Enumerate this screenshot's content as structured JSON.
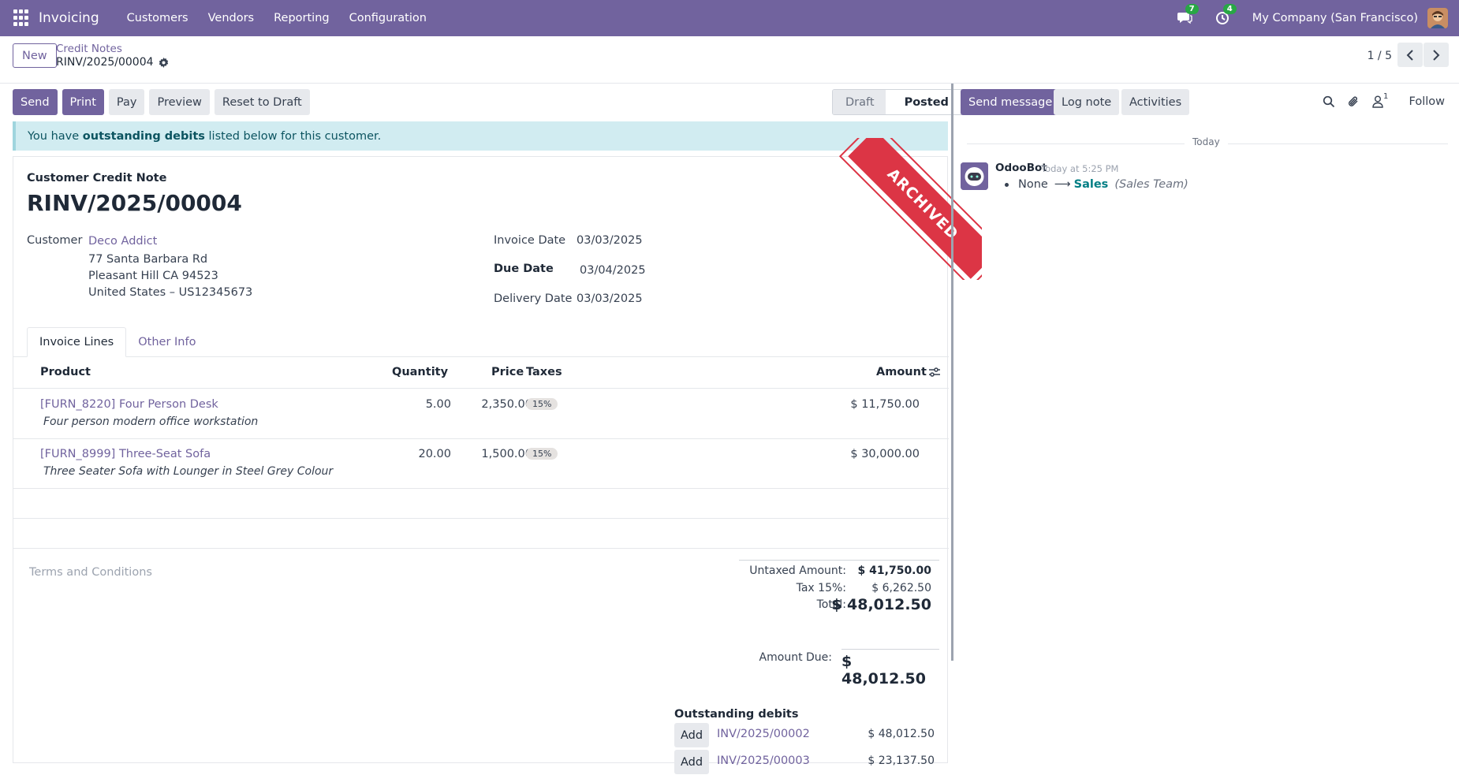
{
  "topbar": {
    "app_name": "Invoicing",
    "menu": [
      "Customers",
      "Vendors",
      "Reporting",
      "Configuration"
    ],
    "messages_badge": "7",
    "activities_badge": "4",
    "company": "My Company (San Francisco)"
  },
  "control": {
    "new_label": "New",
    "breadcrumb_parent": "Credit Notes",
    "breadcrumb_current": "RINV/2025/00004",
    "pager": "1 / 5"
  },
  "actions": {
    "send": "Send",
    "print": "Print",
    "pay": "Pay",
    "preview": "Preview",
    "reset": "Reset to Draft"
  },
  "status": {
    "draft": "Draft",
    "posted": "Posted"
  },
  "alert": {
    "prefix": "You have ",
    "bold": "outstanding debits",
    "suffix": " listed below for this customer."
  },
  "document": {
    "type": "Customer Credit Note",
    "name": "RINV/2025/00004",
    "ribbon": "ARCHIVED",
    "customer_label": "Customer",
    "customer_name": "Deco Addict",
    "address": [
      "77 Santa Barbara Rd",
      "Pleasant Hill CA 94523",
      "United States – US12345673"
    ],
    "invoice_date_label": "Invoice Date",
    "invoice_date": "03/03/2025",
    "due_date_label": "Due Date",
    "due_date": "03/04/2025",
    "delivery_date_label": "Delivery Date",
    "delivery_date": "03/03/2025"
  },
  "tabs": [
    "Invoice Lines",
    "Other Info"
  ],
  "table": {
    "headers": {
      "product": "Product",
      "quantity": "Quantity",
      "price": "Price",
      "taxes": "Taxes",
      "amount": "Amount"
    },
    "rows": [
      {
        "product": "[FURN_8220] Four Person Desk",
        "description": "Four person modern office workstation",
        "quantity": "5.00",
        "price": "2,350.00",
        "tax": "15%",
        "amount": "$ 11,750.00"
      },
      {
        "product": "[FURN_8999] Three-Seat Sofa",
        "description": "Three Seater Sofa with Lounger in Steel Grey Colour",
        "quantity": "20.00",
        "price": "1,500.00",
        "tax": "15%",
        "amount": "$ 30,000.00"
      }
    ]
  },
  "terms_placeholder": "Terms and Conditions",
  "totals": {
    "untaxed_label": "Untaxed Amount:",
    "untaxed": "$ 41,750.00",
    "tax_label": "Tax 15%:",
    "tax": "$ 6,262.50",
    "total_label": "Total:",
    "total": "$ 48,012.50",
    "due_label": "Amount Due:",
    "due": "$ 48,012.50"
  },
  "outstanding": {
    "title": "Outstanding debits",
    "rows": [
      {
        "add": "Add",
        "invoice": "INV/2025/00002",
        "amount": "$ 48,012.50"
      },
      {
        "add": "Add",
        "invoice": "INV/2025/00003",
        "amount": "$ 23,137.50"
      }
    ]
  },
  "chatter": {
    "send_message": "Send message",
    "log_note": "Log note",
    "activities": "Activities",
    "followers_count": "1",
    "follow": "Follow",
    "today": "Today",
    "author": "OdooBot",
    "time": "Today at 5:25 PM",
    "change_old": "None",
    "change_arrow": "⟶",
    "change_new": "Sales",
    "change_field": "(Sales Team)"
  },
  "colors": {
    "brand": "#71639e",
    "ribbon": "#dc3545",
    "alert_bg": "#d1ecf1"
  }
}
